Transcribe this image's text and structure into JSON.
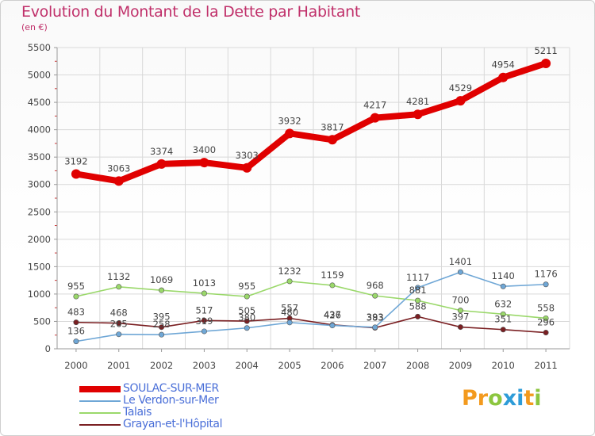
{
  "header": {
    "title": "Evolution du Montant de la Dette par Habitant",
    "subtitle": "(en €)"
  },
  "colors": {
    "title": "#c0306a",
    "grid": "#d9d9d9",
    "axis": "#9a9a9a",
    "tick_minor": "#cc3333",
    "label": "#444444",
    "legend_text": "#4a6fd8"
  },
  "chart_data": {
    "type": "line",
    "title": "Evolution du Montant de la Dette par Habitant",
    "subtitle": "(en €)",
    "x": [
      "2000",
      "2001",
      "2002",
      "2003",
      "2004",
      "2005",
      "2006",
      "2007",
      "2008",
      "2009",
      "2010",
      "2011"
    ],
    "yticks": [
      0,
      500,
      1000,
      1500,
      2000,
      2500,
      3000,
      3500,
      4000,
      4500,
      5000,
      5500
    ],
    "ylim": [
      0,
      5500
    ],
    "grid": true,
    "legend_position": "bottom-left",
    "series": [
      {
        "name": "SOULAC-SUR-MER",
        "color": "#e00000",
        "width": 8,
        "marker": 6,
        "values": [
          3192,
          3063,
          3374,
          3400,
          3303,
          3932,
          3817,
          4217,
          4281,
          4529,
          4954,
          5211
        ]
      },
      {
        "name": "Le Verdon-sur-Mer",
        "color": "#6fa7d6",
        "width": 1.6,
        "marker": 3.2,
        "values": [
          136,
          265,
          258,
          319,
          380,
          480,
          426,
          393,
          1117,
          1401,
          1140,
          1176
        ]
      },
      {
        "name": "Talais",
        "color": "#9ad86a",
        "width": 1.6,
        "marker": 3.2,
        "values": [
          955,
          1132,
          1069,
          1013,
          955,
          1232,
          1159,
          968,
          881,
          700,
          632,
          558
        ]
      },
      {
        "name": "Grayan-et-l'Hôpital",
        "color": "#7a1f22",
        "width": 1.6,
        "marker": 3.2,
        "values": [
          483,
          468,
          395,
          517,
          505,
          557,
          437,
          383,
          588,
          397,
          351,
          296
        ]
      }
    ]
  },
  "logo": {
    "text": "Proxiti",
    "letters": [
      {
        "ch": "P",
        "color": "#f39a1e"
      },
      {
        "ch": "r",
        "color": "#f39a1e"
      },
      {
        "ch": "o",
        "color": "#8cc63f"
      },
      {
        "ch": "x",
        "color": "#2e9cd8"
      },
      {
        "ch": "i",
        "color": "#2e9cd8"
      },
      {
        "ch": "t",
        "color": "#f39a1e"
      },
      {
        "ch": "i",
        "color": "#8cc63f"
      }
    ]
  }
}
